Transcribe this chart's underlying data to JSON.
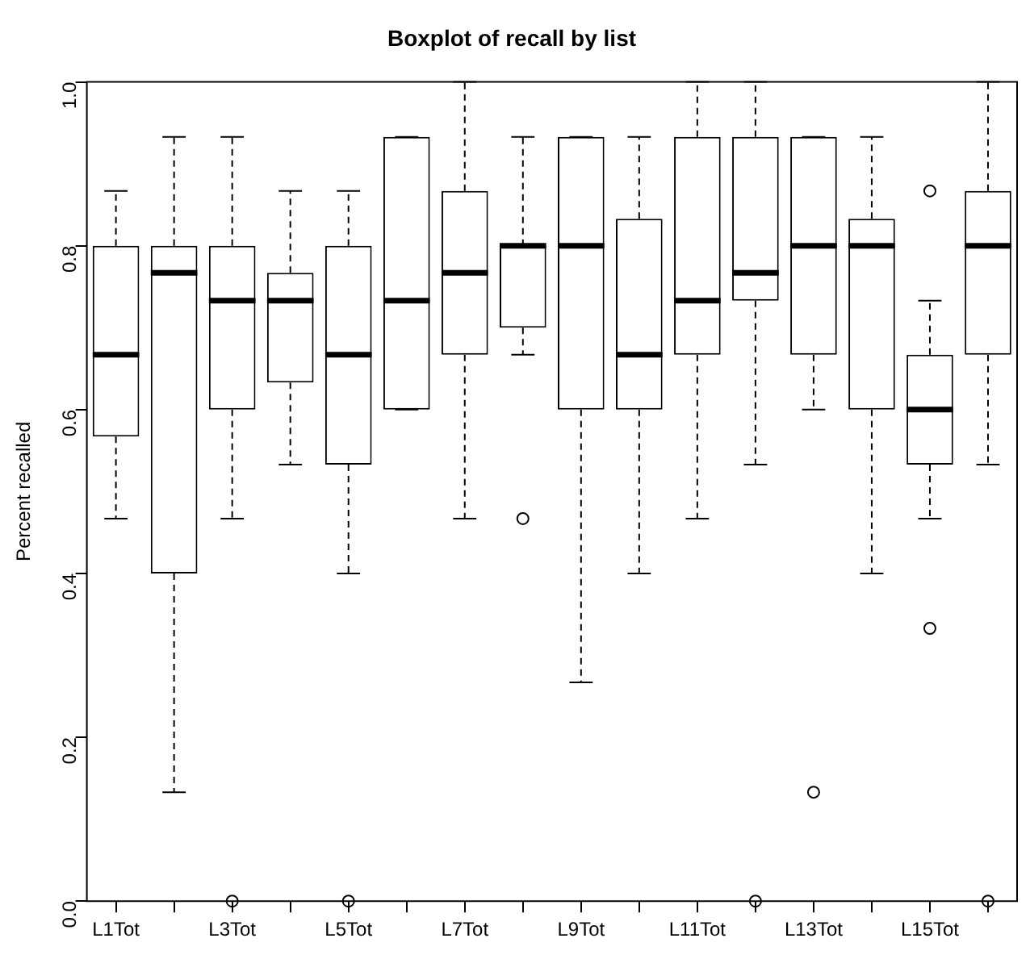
{
  "chart_data": {
    "type": "box",
    "title": "Boxplot of recall by list",
    "ylabel": "Percent recalled",
    "categories": [
      "L1Tot",
      null,
      "L3Tot",
      null,
      "L5Tot",
      null,
      "L7Tot",
      null,
      "L9Tot",
      null,
      "L11Tot",
      null,
      "L13Tot",
      null,
      "L15Tot",
      null
    ],
    "ylim": [
      0,
      1
    ],
    "yticks": [
      {
        "value": 0,
        "label": "0.0"
      },
      0.2,
      0.4,
      0.6,
      0.8,
      {
        "value": 1,
        "label": "1.0"
      }
    ],
    "boxes": [
      {
        "low": 0.467,
        "q1": 0.567,
        "median": 0.667,
        "q3": 0.8,
        "high": 0.867
      },
      {
        "low": 0.133,
        "q1": 0.4,
        "median": 0.767,
        "q3": 0.8,
        "high": 0.933
      },
      {
        "low": 0.467,
        "q1": 0.6,
        "median": 0.733,
        "q3": 0.8,
        "high": 0.933,
        "outliers": [
          0
        ]
      },
      {
        "low": 0.533,
        "q1": 0.633,
        "median": 0.733,
        "q3": 0.767,
        "high": 0.867
      },
      {
        "low": 0.4,
        "q1": 0.533,
        "median": 0.667,
        "q3": 0.8,
        "high": 0.867,
        "outliers": [
          0
        ]
      },
      {
        "low": 0.6,
        "q1": 0.6,
        "median": 0.733,
        "q3": 0.933,
        "high": 0.933
      },
      {
        "low": 0.467,
        "q1": 0.667,
        "median": 0.767,
        "q3": 0.867,
        "high": 1
      },
      {
        "low": 0.667,
        "q1": 0.7,
        "median": 0.8,
        "q3": 0.8,
        "high": 0.933,
        "outliers": [
          0.467
        ]
      },
      {
        "low": 0.267,
        "q1": 0.6,
        "median": 0.8,
        "q3": 0.933,
        "high": 0.933
      },
      {
        "low": 0.4,
        "q1": 0.6,
        "median": 0.667,
        "q3": 0.833,
        "high": 0.933
      },
      {
        "low": 0.467,
        "q1": 0.667,
        "median": 0.733,
        "q3": 0.933,
        "high": 1
      },
      {
        "low": 0.533,
        "q1": 0.733,
        "median": 0.767,
        "q3": 0.933,
        "high": 1,
        "outliers": [
          0
        ]
      },
      {
        "low": 0.6,
        "q1": 0.667,
        "median": 0.8,
        "q3": 0.933,
        "high": 0.933,
        "outliers": [
          0.133
        ]
      },
      {
        "low": 0.4,
        "q1": 0.6,
        "median": 0.8,
        "q3": 0.833,
        "high": 0.933
      },
      {
        "low": 0.467,
        "q1": 0.533,
        "median": 0.6,
        "q3": 0.667,
        "high": 0.733,
        "outliers": [
          0.333,
          0.867
        ]
      },
      {
        "low": 0.533,
        "q1": 0.667,
        "median": 0.8,
        "q3": 0.867,
        "high": 1,
        "outliers": [
          0
        ]
      }
    ]
  }
}
